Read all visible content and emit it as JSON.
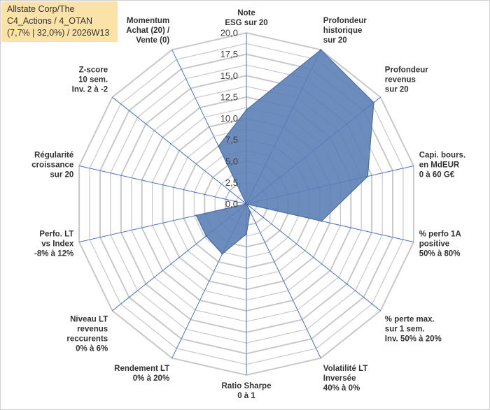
{
  "title_lines": [
    "Allstate Corp/The",
    "C4_Actions / 4_OTAN",
    "(7,7% | 32,0%) / 2026W13"
  ],
  "colors": {
    "grid": "#c8c8c8",
    "spoke": "#4472c4",
    "fill": "#5b7fb5",
    "stroke": "#4a6ea8",
    "title_bg": "#fbe3a8"
  },
  "chart_data": {
    "type": "radar",
    "ylim": [
      0,
      20
    ],
    "ticks": [
      "0,0",
      "2,5",
      "5,0",
      "7,5",
      "10,0",
      "12,5",
      "15,0",
      "17,5",
      "20,0"
    ],
    "axes": [
      {
        "lines": [
          "Note",
          "ESG sur 20"
        ],
        "value": 11
      },
      {
        "lines": [
          "Profondeur",
          "historique",
          "sur 20"
        ],
        "value": 20
      },
      {
        "lines": [
          "Profondeur",
          "revenus",
          "sur 20"
        ],
        "value": 19
      },
      {
        "lines": [
          "Capi. bours.",
          "en MdEUR",
          "0 à 60 G€"
        ],
        "value": 14.5
      },
      {
        "lines": [
          "% perfo 1A",
          "positive",
          "50% à 80%"
        ],
        "value": 9
      },
      {
        "lines": [
          "% perte max.",
          "sur 1 sem.",
          "Inv. 50% à 20%"
        ],
        "value": 0
      },
      {
        "lines": [
          "Volatilité LT",
          "Inversée",
          "40% à 0%"
        ],
        "value": 1
      },
      {
        "lines": [
          "Ratio Sharpe",
          "0 à 1"
        ],
        "value": 3.5
      },
      {
        "lines": [
          "Rendement LT",
          "0% à 20%"
        ],
        "value": 6.5
      },
      {
        "lines": [
          "Niveau LT",
          "revenus",
          "reccurents",
          "0% à 6%"
        ],
        "value": 6
      },
      {
        "lines": [
          "Perfo. LT",
          "vs Index",
          "-8% à 12%"
        ],
        "value": 6
      },
      {
        "lines": [
          "Régularité",
          "croissance",
          "sur 20"
        ],
        "value": 0
      },
      {
        "lines": [
          "Z-score",
          "10 sem.",
          "Inv. 2 à -2"
        ],
        "value": 0
      },
      {
        "lines": [
          "Momentum",
          "Achat (20) /",
          "Vente (0)"
        ],
        "value": 7.5
      }
    ]
  }
}
